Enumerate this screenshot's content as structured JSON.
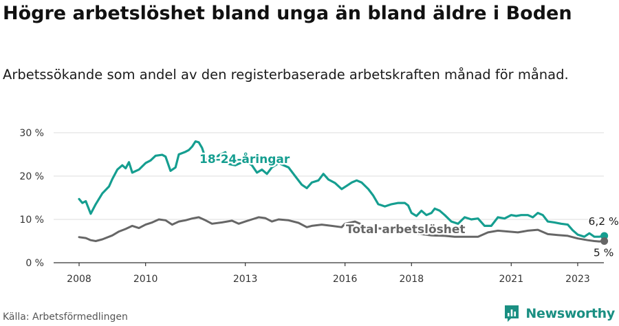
{
  "header": {
    "title": "Högre arbetslöshet bland unga än bland äldre i Boden",
    "subtitle": "Arbetssökande som andel av den registerbaserade arbetskraften månad för månad."
  },
  "footer": {
    "source": "Källa: Arbetsförmedlingen",
    "brand": "Newsworthy"
  },
  "colors": {
    "youth": "#159e90",
    "total": "#666666",
    "grid": "#dcdcdc",
    "brand": "#1a8f82"
  },
  "chart_data": {
    "type": "line",
    "title": "Högre arbetslöshet bland unga än bland äldre i Boden",
    "xlabel": "",
    "ylabel": "",
    "xlim": [
      2007.6,
      2023.9
    ],
    "ylim": [
      0,
      30
    ],
    "y_ticks": [
      0,
      10,
      20,
      30
    ],
    "y_tick_labels": [
      "0 %",
      "10 %",
      "20 %",
      "30 %"
    ],
    "x_ticks": [
      2008,
      2010,
      2013,
      2016,
      2018,
      2021,
      2023
    ],
    "x_tick_labels": [
      "2008",
      "2010",
      "2013",
      "2016",
      "2018",
      "2021",
      "2023"
    ],
    "grid": true,
    "series": [
      {
        "name": "18-24-åringar",
        "color": "#159e90",
        "end_label": "6,2 %",
        "points": [
          [
            2008.0,
            14.7
          ],
          [
            2008.1,
            13.8
          ],
          [
            2008.2,
            14.2
          ],
          [
            2008.35,
            11.3
          ],
          [
            2008.5,
            13.5
          ],
          [
            2008.7,
            16.0
          ],
          [
            2008.9,
            17.6
          ],
          [
            2009.0,
            19.3
          ],
          [
            2009.15,
            21.5
          ],
          [
            2009.3,
            22.5
          ],
          [
            2009.4,
            21.8
          ],
          [
            2009.5,
            23.2
          ],
          [
            2009.6,
            20.8
          ],
          [
            2009.8,
            21.5
          ],
          [
            2010.0,
            23.0
          ],
          [
            2010.15,
            23.6
          ],
          [
            2010.3,
            24.7
          ],
          [
            2010.5,
            24.9
          ],
          [
            2010.6,
            24.5
          ],
          [
            2010.75,
            21.2
          ],
          [
            2010.9,
            22.0
          ],
          [
            2011.0,
            25.0
          ],
          [
            2011.2,
            25.6
          ],
          [
            2011.3,
            26.0
          ],
          [
            2011.4,
            26.8
          ],
          [
            2011.5,
            28.0
          ],
          [
            2011.6,
            27.8
          ],
          [
            2011.7,
            26.5
          ],
          [
            2011.85,
            23.0
          ],
          [
            2012.0,
            23.1
          ],
          [
            2012.2,
            24.8
          ],
          [
            2012.4,
            25.5
          ],
          [
            2012.5,
            22.8
          ],
          [
            2012.7,
            22.5
          ],
          [
            2013.0,
            23.5
          ],
          [
            2013.2,
            22.5
          ],
          [
            2013.35,
            20.8
          ],
          [
            2013.5,
            21.5
          ],
          [
            2013.65,
            20.5
          ],
          [
            2013.8,
            22.0
          ],
          [
            2014.0,
            23.0
          ],
          [
            2014.3,
            22.0
          ],
          [
            2014.5,
            20.0
          ],
          [
            2014.7,
            18.0
          ],
          [
            2014.85,
            17.2
          ],
          [
            2015.0,
            18.5
          ],
          [
            2015.2,
            19.0
          ],
          [
            2015.35,
            20.5
          ],
          [
            2015.5,
            19.2
          ],
          [
            2015.7,
            18.4
          ],
          [
            2015.9,
            17.0
          ],
          [
            2016.0,
            17.5
          ],
          [
            2016.2,
            18.5
          ],
          [
            2016.35,
            19.0
          ],
          [
            2016.5,
            18.5
          ],
          [
            2016.7,
            17.0
          ],
          [
            2016.85,
            15.5
          ],
          [
            2017.0,
            13.5
          ],
          [
            2017.2,
            13.0
          ],
          [
            2017.4,
            13.5
          ],
          [
            2017.6,
            13.8
          ],
          [
            2017.8,
            13.8
          ],
          [
            2017.9,
            13.2
          ],
          [
            2018.0,
            11.5
          ],
          [
            2018.15,
            10.8
          ],
          [
            2018.3,
            12.0
          ],
          [
            2018.45,
            11.0
          ],
          [
            2018.6,
            11.5
          ],
          [
            2018.7,
            12.5
          ],
          [
            2018.85,
            12.0
          ],
          [
            2019.0,
            11.0
          ],
          [
            2019.2,
            9.5
          ],
          [
            2019.4,
            9.0
          ],
          [
            2019.6,
            10.5
          ],
          [
            2019.8,
            10.0
          ],
          [
            2020.0,
            10.2
          ],
          [
            2020.2,
            8.5
          ],
          [
            2020.4,
            8.5
          ],
          [
            2020.6,
            10.5
          ],
          [
            2020.8,
            10.2
          ],
          [
            2021.0,
            11.0
          ],
          [
            2021.15,
            10.8
          ],
          [
            2021.3,
            11.0
          ],
          [
            2021.5,
            11.0
          ],
          [
            2021.65,
            10.5
          ],
          [
            2021.8,
            11.5
          ],
          [
            2021.95,
            11.0
          ],
          [
            2022.1,
            9.5
          ],
          [
            2022.3,
            9.3
          ],
          [
            2022.5,
            9.0
          ],
          [
            2022.7,
            8.8
          ],
          [
            2022.85,
            7.5
          ],
          [
            2023.0,
            6.5
          ],
          [
            2023.2,
            6.0
          ],
          [
            2023.35,
            6.8
          ],
          [
            2023.5,
            6.0
          ],
          [
            2023.65,
            6.0
          ],
          [
            2023.8,
            6.2
          ]
        ]
      },
      {
        "name": "Total arbetslöshet",
        "color": "#666666",
        "end_label": "5 %",
        "points": [
          [
            2008.0,
            5.9
          ],
          [
            2008.2,
            5.7
          ],
          [
            2008.35,
            5.2
          ],
          [
            2008.5,
            5.0
          ],
          [
            2008.7,
            5.4
          ],
          [
            2009.0,
            6.3
          ],
          [
            2009.2,
            7.2
          ],
          [
            2009.4,
            7.8
          ],
          [
            2009.6,
            8.5
          ],
          [
            2009.8,
            8.0
          ],
          [
            2010.0,
            8.8
          ],
          [
            2010.2,
            9.3
          ],
          [
            2010.4,
            10.0
          ],
          [
            2010.6,
            9.8
          ],
          [
            2010.8,
            8.8
          ],
          [
            2011.0,
            9.5
          ],
          [
            2011.2,
            9.8
          ],
          [
            2011.4,
            10.2
          ],
          [
            2011.6,
            10.5
          ],
          [
            2011.8,
            9.8
          ],
          [
            2012.0,
            9.0
          ],
          [
            2012.3,
            9.3
          ],
          [
            2012.6,
            9.7
          ],
          [
            2012.8,
            9.0
          ],
          [
            2013.0,
            9.5
          ],
          [
            2013.2,
            10.0
          ],
          [
            2013.4,
            10.5
          ],
          [
            2013.6,
            10.3
          ],
          [
            2013.8,
            9.5
          ],
          [
            2014.0,
            10.0
          ],
          [
            2014.3,
            9.8
          ],
          [
            2014.6,
            9.2
          ],
          [
            2014.85,
            8.2
          ],
          [
            2015.0,
            8.5
          ],
          [
            2015.3,
            8.8
          ],
          [
            2015.6,
            8.5
          ],
          [
            2015.9,
            8.2
          ],
          [
            2016.0,
            9.0
          ],
          [
            2016.3,
            9.5
          ],
          [
            2016.6,
            8.5
          ],
          [
            2016.9,
            8.0
          ],
          [
            2017.2,
            7.8
          ],
          [
            2017.5,
            7.5
          ],
          [
            2017.8,
            7.2
          ],
          [
            2018.0,
            6.9
          ],
          [
            2018.3,
            6.6
          ],
          [
            2018.6,
            6.3
          ],
          [
            2019.0,
            6.2
          ],
          [
            2019.3,
            6.0
          ],
          [
            2019.6,
            6.0
          ],
          [
            2020.0,
            6.0
          ],
          [
            2020.3,
            7.0
          ],
          [
            2020.6,
            7.4
          ],
          [
            2020.9,
            7.2
          ],
          [
            2021.2,
            7.0
          ],
          [
            2021.5,
            7.4
          ],
          [
            2021.8,
            7.6
          ],
          [
            2022.1,
            6.6
          ],
          [
            2022.4,
            6.4
          ],
          [
            2022.7,
            6.2
          ],
          [
            2023.0,
            5.6
          ],
          [
            2023.3,
            5.2
          ],
          [
            2023.5,
            5.0
          ],
          [
            2023.65,
            4.9
          ],
          [
            2023.8,
            5.0
          ]
        ]
      }
    ]
  }
}
